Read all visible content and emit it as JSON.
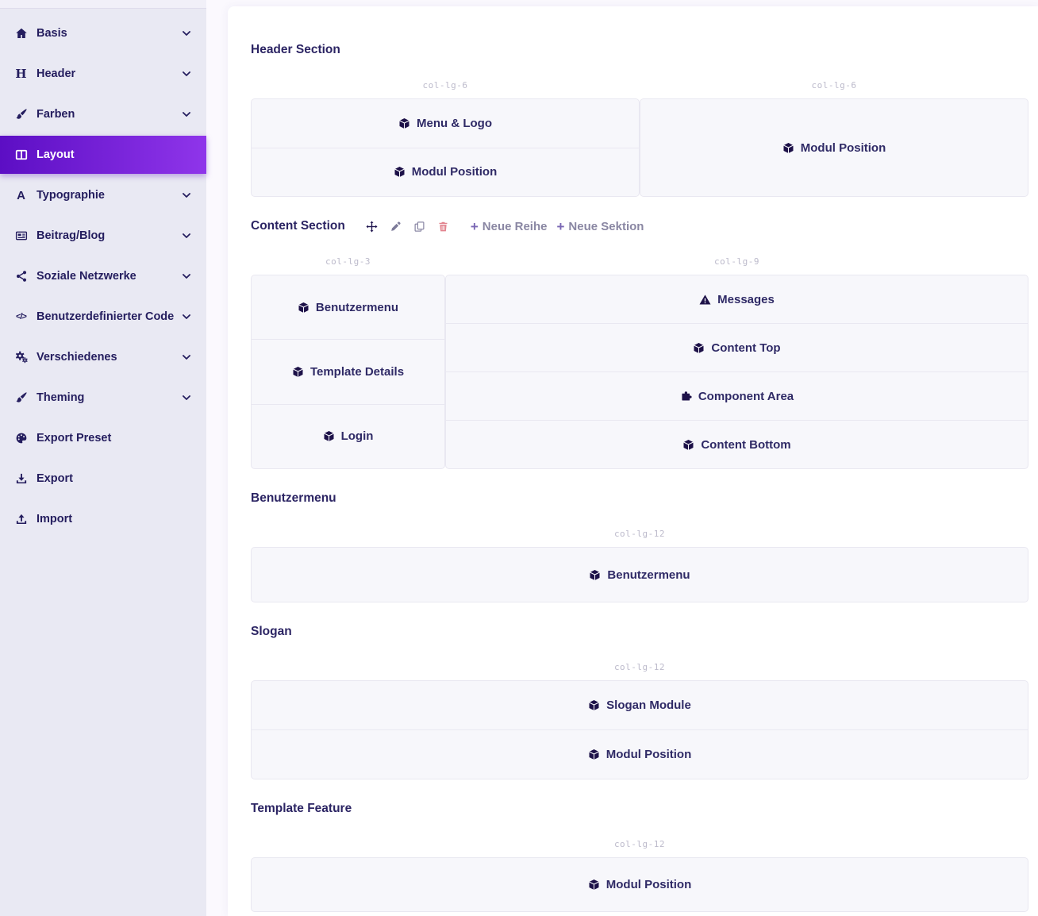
{
  "sidebar": {
    "items": [
      {
        "label": "Basis",
        "icon": "home-icon",
        "chevron": true,
        "active": false
      },
      {
        "label": "Header",
        "icon": "heading-icon",
        "chevron": true,
        "active": false
      },
      {
        "label": "Farben",
        "icon": "paintbrush-icon",
        "chevron": true,
        "active": false
      },
      {
        "label": "Layout",
        "icon": "columns-icon",
        "chevron": false,
        "active": true
      },
      {
        "label": "Typographie",
        "icon": "font-icon",
        "chevron": true,
        "active": false
      },
      {
        "label": "Beitrag/Blog",
        "icon": "newspaper-icon",
        "chevron": true,
        "active": false
      },
      {
        "label": "Soziale Netzwerke",
        "icon": "share-icon",
        "chevron": true,
        "active": false
      },
      {
        "label": "Benutzerdefinierter Code",
        "icon": "code-icon",
        "chevron": true,
        "active": false
      },
      {
        "label": "Verschiedenes",
        "icon": "cogs-icon",
        "chevron": true,
        "active": false
      },
      {
        "label": "Theming",
        "icon": "paintbrush-icon",
        "chevron": true,
        "active": false
      },
      {
        "label": "Export Preset",
        "icon": "palette-icon",
        "chevron": false,
        "active": false
      },
      {
        "label": "Export",
        "icon": "download-icon",
        "chevron": false,
        "active": false
      },
      {
        "label": "Import",
        "icon": "upload-icon",
        "chevron": false,
        "active": false
      }
    ]
  },
  "sections": [
    {
      "title": "Header Section",
      "columns": [
        {
          "size_label": "col-lg-6",
          "modules": [
            {
              "label": "Menu & Logo",
              "icon": "cube-icon"
            },
            {
              "label": "Modul Position",
              "icon": "cube-icon"
            }
          ]
        },
        {
          "size_label": "col-lg-6",
          "modules": [
            {
              "label": "Modul Position",
              "icon": "cube-icon"
            }
          ]
        }
      ]
    },
    {
      "title": "Content Section",
      "toolbar": {
        "icons": [
          {
            "name": "move-icon"
          },
          {
            "name": "pencil-icon"
          },
          {
            "name": "copy-icon"
          },
          {
            "name": "trash-icon"
          }
        ],
        "actions": [
          {
            "label": "Neue Reihe"
          },
          {
            "label": "Neue Sektion"
          }
        ]
      },
      "columns": [
        {
          "size_label": "col-lg-3",
          "modules": [
            {
              "label": "Benutzermenu",
              "icon": "cube-icon"
            },
            {
              "label": "Template Details",
              "icon": "cube-icon"
            },
            {
              "label": "Login",
              "icon": "cube-icon"
            }
          ]
        },
        {
          "size_label": "col-lg-9",
          "modules": [
            {
              "label": "Messages",
              "icon": "warning-icon"
            },
            {
              "label": "Content Top",
              "icon": "cube-icon"
            },
            {
              "label": "Component Area",
              "icon": "puzzle-icon"
            },
            {
              "label": "Content Bottom",
              "icon": "cube-icon"
            }
          ]
        }
      ]
    },
    {
      "title": "Benutzermenu",
      "columns": [
        {
          "size_label": "col-lg-12",
          "modules": [
            {
              "label": "Benutzermenu",
              "icon": "cube-icon"
            }
          ]
        }
      ]
    },
    {
      "title": "Slogan",
      "columns": [
        {
          "size_label": "col-lg-12",
          "modules": [
            {
              "label": "Slogan Module",
              "icon": "cube-icon"
            },
            {
              "label": "Modul Position",
              "icon": "cube-icon"
            }
          ]
        }
      ]
    },
    {
      "title": "Template Feature",
      "columns": [
        {
          "size_label": "col-lg-12",
          "modules": [
            {
              "label": "Modul Position",
              "icon": "cube-icon"
            }
          ]
        }
      ]
    }
  ],
  "colors": {
    "accent_gradient_start": "#5c0ec4",
    "accent_gradient_end": "#8f35ea",
    "sidebar_bg": "#e9e9f3",
    "text_dark": "#241d5e",
    "box_bg": "#f7f7fb",
    "box_border": "#e9e8f1",
    "size_label_gray": "#bcbacb",
    "toolbar_link_gray": "#8a87a3",
    "plus_purple": "#7a67b4",
    "trash_rose": "#e2838e"
  }
}
